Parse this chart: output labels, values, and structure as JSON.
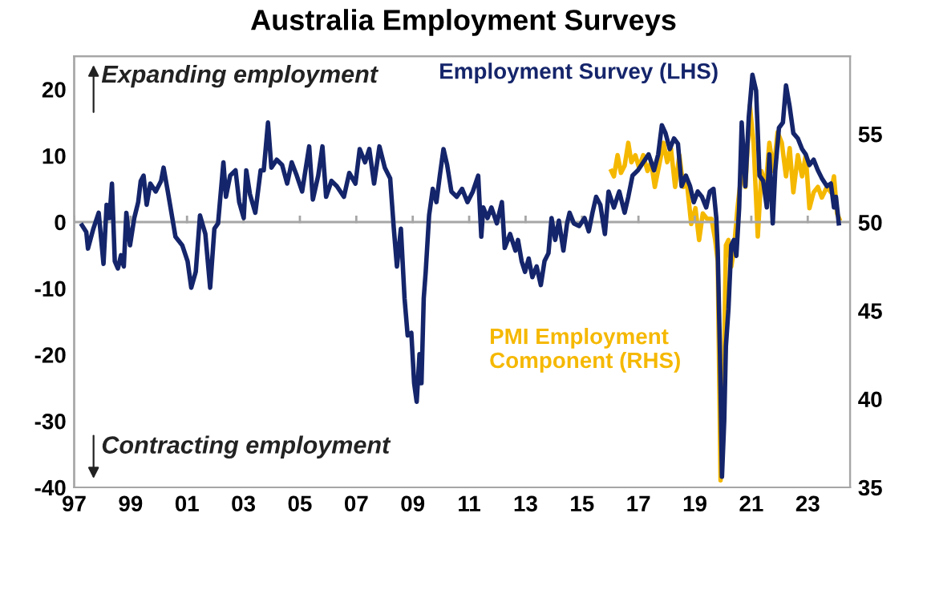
{
  "chart_data": {
    "type": "line",
    "title": "Australia Employment Surveys",
    "xlim": [
      1997,
      2024.5
    ],
    "xticks": [
      {
        "value": 1997,
        "label": "97"
      },
      {
        "value": 1999,
        "label": "99"
      },
      {
        "value": 2001,
        "label": "01"
      },
      {
        "value": 2003,
        "label": "03"
      },
      {
        "value": 2005,
        "label": "05"
      },
      {
        "value": 2007,
        "label": "07"
      },
      {
        "value": 2009,
        "label": "09"
      },
      {
        "value": 2011,
        "label": "11"
      },
      {
        "value": 2013,
        "label": "13"
      },
      {
        "value": 2015,
        "label": "15"
      },
      {
        "value": 2017,
        "label": "17"
      },
      {
        "value": 2019,
        "label": "19"
      },
      {
        "value": 2021,
        "label": "21"
      },
      {
        "value": 2023,
        "label": "23"
      }
    ],
    "ylim": [
      -40,
      25
    ],
    "yticks": [
      -40,
      -30,
      -20,
      -10,
      0,
      10,
      20
    ],
    "y2lim": [
      35,
      59.4
    ],
    "y2ticks": [
      35,
      40,
      45,
      50,
      55
    ],
    "ref_lines": [
      {
        "axis": "y",
        "value": 0,
        "color": "#a6a6a6"
      }
    ],
    "annotations": [
      "Expanding employment",
      "Contracting employment"
    ],
    "legend": false,
    "grid": false,
    "marker": "none",
    "line_style": "solid",
    "series": [
      {
        "name": "Employment Survey (LHS)",
        "color": "#15256b",
        "x": [
          1997.28,
          1997.43,
          1997.49,
          1997.68,
          1997.87,
          1998.04,
          1998.15,
          1998.25,
          1998.34,
          1998.44,
          1998.55,
          1998.66,
          1998.76,
          1998.85,
          1998.98,
          1999.13,
          1999.27,
          1999.36,
          1999.46,
          1999.57,
          1999.7,
          1999.89,
          2000.08,
          2000.17,
          2000.32,
          2000.59,
          2000.83,
          2001.02,
          2001.15,
          2001.31,
          2001.46,
          2001.65,
          2001.82,
          2001.97,
          2002.1,
          2002.29,
          2002.38,
          2002.53,
          2002.72,
          2002.85,
          2003.01,
          2003.1,
          2003.23,
          2003.42,
          2003.61,
          2003.72,
          2003.87,
          2003.99,
          2004.18,
          2004.37,
          2004.55,
          2004.71,
          2004.89,
          2005.08,
          2005.33,
          2005.46,
          2005.65,
          2005.8,
          2005.93,
          2006.12,
          2006.31,
          2006.56,
          2006.75,
          2006.97,
          2007.12,
          2007.31,
          2007.46,
          2007.63,
          2007.82,
          2008.01,
          2008.2,
          2008.33,
          2008.44,
          2008.58,
          2008.71,
          2008.82,
          2008.95,
          2009.05,
          2009.14,
          2009.24,
          2009.31,
          2009.39,
          2009.46,
          2009.58,
          2009.71,
          2009.84,
          2009.96,
          2010.09,
          2010.22,
          2010.37,
          2010.56,
          2010.75,
          2010.94,
          2011.13,
          2011.32,
          2011.43,
          2011.5,
          2011.65,
          2011.79,
          2011.98,
          2012.16,
          2012.26,
          2012.45,
          2012.64,
          2012.73,
          2012.86,
          2012.98,
          2013.11,
          2013.24,
          2013.39,
          2013.54,
          2013.67,
          2013.81,
          2013.92,
          2014.05,
          2014.18,
          2014.34,
          2014.47,
          2014.56,
          2014.71,
          2014.9,
          2015.09,
          2015.24,
          2015.37,
          2015.5,
          2015.65,
          2015.81,
          2015.94,
          2016.13,
          2016.32,
          2016.51,
          2016.64,
          2016.79,
          2016.98,
          2017.17,
          2017.36,
          2017.55,
          2017.7,
          2017.83,
          2017.96,
          2018.11,
          2018.26,
          2018.4,
          2018.53,
          2018.68,
          2018.83,
          2018.96,
          2019.1,
          2019.25,
          2019.4,
          2019.53,
          2019.66,
          2019.76,
          2019.81,
          2019.89,
          2019.96,
          2020.04,
          2020.1,
          2020.19,
          2020.29,
          2020.38,
          2020.47,
          2020.57,
          2020.66,
          2020.79,
          2020.91,
          2021.04,
          2021.17,
          2021.29,
          2021.42,
          2021.55,
          2021.64,
          2021.76,
          2021.85,
          2021.98,
          2022.12,
          2022.23,
          2022.36,
          2022.49,
          2022.65,
          2022.8,
          2022.93,
          2023.06,
          2023.21,
          2023.36,
          2023.5,
          2023.68,
          2023.82,
          2023.93,
          2024.0,
          2024.1
        ],
        "values": [
          -0.5,
          -1.5,
          -4,
          -1,
          1.4,
          -6.3,
          2.6,
          0.6,
          5.8,
          -5.9,
          -7,
          -5,
          -6.7,
          1.4,
          -3.5,
          0.6,
          3,
          6.2,
          7,
          2.6,
          5.8,
          4.6,
          6.2,
          8.2,
          4.6,
          -2.2,
          -3.5,
          -5.9,
          -9.9,
          -7.5,
          1,
          -1.8,
          -9.9,
          -1,
          -0.2,
          9,
          3.8,
          7,
          7.8,
          3,
          0.6,
          7.8,
          4.2,
          1.4,
          7.8,
          7.8,
          15,
          8.2,
          9.4,
          8.6,
          5.8,
          9,
          7,
          4.6,
          11.4,
          3.4,
          7,
          11.4,
          3.8,
          6.2,
          5.4,
          3.8,
          7.4,
          5.8,
          11,
          9,
          11,
          5.8,
          11.4,
          8.2,
          6.6,
          -1,
          -6.7,
          -1,
          -11.5,
          -17.1,
          -16.7,
          -24.3,
          -27.1,
          -19.9,
          -24.3,
          -11.5,
          -7.5,
          1,
          5,
          3,
          7,
          11,
          8.6,
          4.6,
          3.8,
          5,
          3,
          4.6,
          7,
          -2.2,
          2.2,
          0.6,
          2.2,
          -0.2,
          3,
          -3.9,
          -1.8,
          -4.3,
          -2.7,
          -5.9,
          -7.5,
          -5.5,
          -8.3,
          -6.7,
          -9.5,
          -5.9,
          -4.7,
          0.6,
          -2.7,
          0.2,
          -4.3,
          -0.2,
          1.4,
          -0.2,
          -0.6,
          0.6,
          -1.4,
          1.4,
          3.8,
          2.6,
          -1.8,
          4.6,
          2.2,
          4.6,
          1.4,
          3.8,
          7,
          7.8,
          9,
          10.2,
          7.8,
          10.2,
          14.6,
          13.4,
          11,
          12.6,
          11.8,
          5.4,
          7,
          5.4,
          3,
          4.6,
          3.8,
          2.2,
          4.6,
          5,
          0.6,
          -4.3,
          -20,
          -38.4,
          -30,
          -18.7,
          -13.1,
          -3.5,
          -2.7,
          -5.1,
          2.2,
          15,
          5.4,
          15.8,
          22.2,
          19.8,
          7,
          6.2,
          2.2,
          10.2,
          -0.2,
          7.8,
          14.2,
          15,
          20.6,
          17.4,
          13.4,
          12.6,
          11,
          10.2,
          8.6,
          9.4,
          7.8,
          6.6,
          5.4,
          5.8,
          2.2,
          3.8,
          -0.2
        ]
      },
      {
        "name": "PMI Employment Component (RHS)",
        "color": "#f5b800",
        "axis": "y2",
        "x": [
          2016.04,
          2016.13,
          2016.26,
          2016.38,
          2016.51,
          2016.64,
          2016.75,
          2016.89,
          2017.02,
          2017.17,
          2017.32,
          2017.45,
          2017.58,
          2017.73,
          2017.89,
          2018.02,
          2018.15,
          2018.3,
          2018.45,
          2018.59,
          2018.72,
          2018.87,
          2019.02,
          2019.15,
          2019.28,
          2019.43,
          2019.59,
          2019.72,
          2019.81,
          2019.91,
          2020.0,
          2020.1,
          2020.19,
          2020.29,
          2020.38,
          2020.51,
          2020.66,
          2020.79,
          2020.95,
          2021.08,
          2021.23,
          2021.36,
          2021.51,
          2021.64,
          2021.79,
          2021.93,
          2022.08,
          2022.23,
          2022.36,
          2022.49,
          2022.65,
          2022.8,
          2022.93,
          2023.06,
          2023.21,
          2023.36,
          2023.5,
          2023.68,
          2023.82,
          2023.93,
          2024.04,
          2024.12
        ],
        "values": [
          52.9,
          52.6,
          53.8,
          52.8,
          53.2,
          54.5,
          53.4,
          53.8,
          53.1,
          53.8,
          52.9,
          53.4,
          52.0,
          53.2,
          54.5,
          53.4,
          54.2,
          52.0,
          53.8,
          52.0,
          52.2,
          49.9,
          50.8,
          49.0,
          50.5,
          50.2,
          50.2,
          49.0,
          47.8,
          35.4,
          38.7,
          48.7,
          49.0,
          47.5,
          48.4,
          50.8,
          52.9,
          52.0,
          56.6,
          54.5,
          49.2,
          52.9,
          52.0,
          54.5,
          52.9,
          55.1,
          54.5,
          52.6,
          54.2,
          51.7,
          53.8,
          52.6,
          53.8,
          50.8,
          51.7,
          52.0,
          51.4,
          52.0,
          51.7,
          52.6,
          50.5,
          50.2
        ]
      }
    ]
  }
}
